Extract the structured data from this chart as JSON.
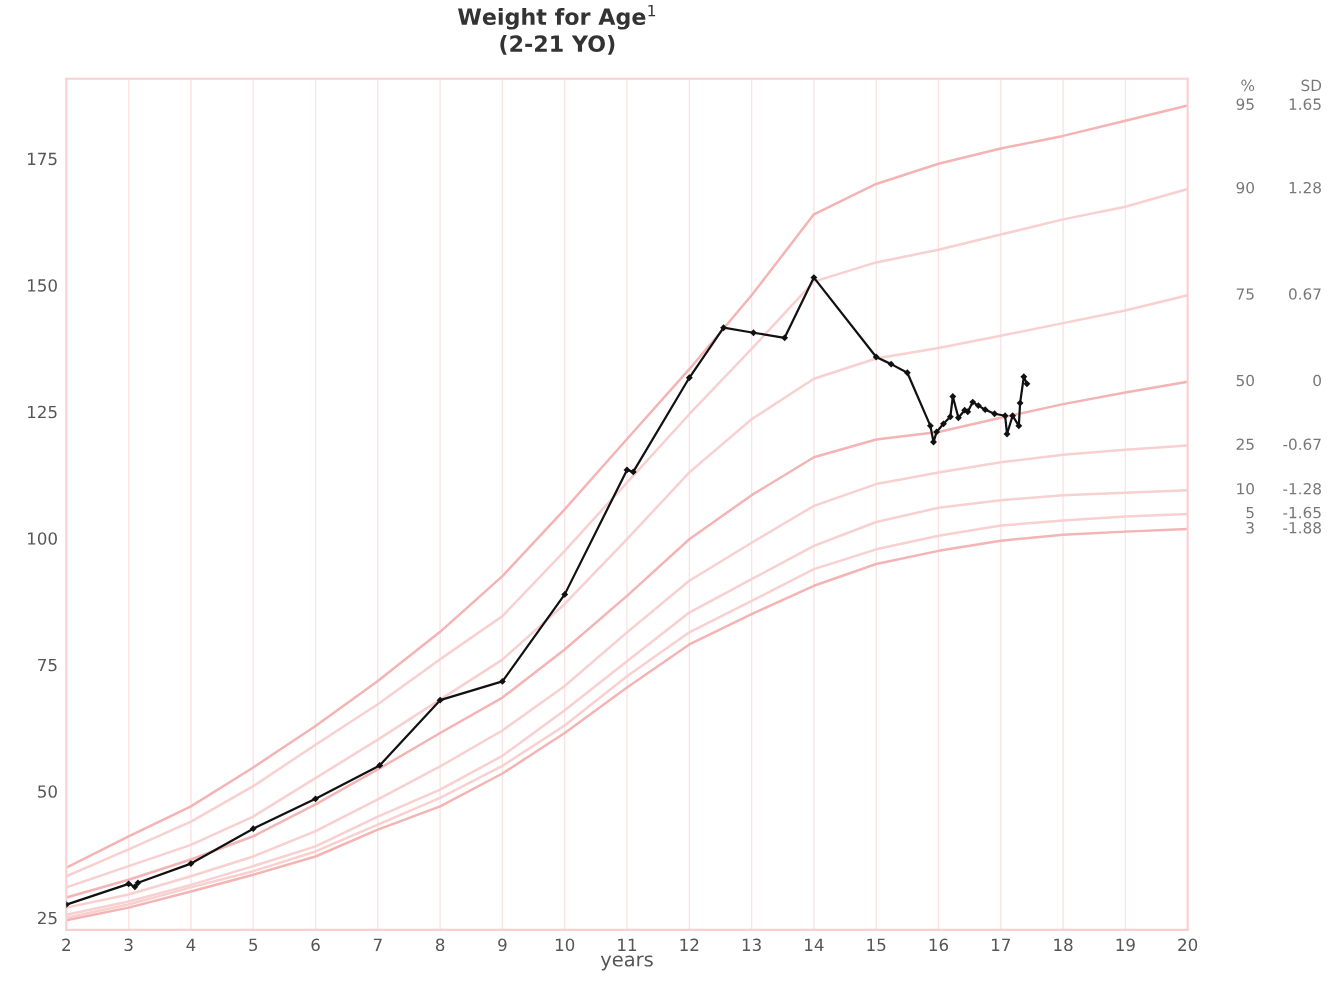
{
  "chart_data": {
    "type": "line",
    "title": "Weight for Age$^{1}$\n(2-21 YO)",
    "xlabel": "years",
    "xlim": [
      2,
      20
    ],
    "xticks": [
      2,
      3,
      4,
      5,
      6,
      7,
      8,
      9,
      10,
      11,
      12,
      13,
      14,
      15,
      16,
      17,
      18,
      19,
      20
    ],
    "ylim": [
      22.6,
      190.8
    ],
    "yticks": [
      25,
      50,
      75,
      100,
      125,
      150,
      175
    ],
    "grid": "x",
    "legend": false,
    "marker": "diamond",
    "line_style": "solid",
    "annotations": [
      "%",
      "SD",
      "1.65",
      "1.28",
      "0.67",
      "0",
      "-0.67",
      "-1.28",
      "-1.65",
      "-1.88"
    ],
    "x": [
      2,
      3,
      4,
      5,
      6,
      7,
      8,
      9,
      10,
      11,
      12,
      13,
      14,
      15,
      16,
      17,
      18,
      19,
      20
    ],
    "series": [
      {
        "name": "95",
        "color": "#f4b4b4",
        "marker": "none",
        "values": [
          34.9,
          41.1,
          47,
          54.7,
          62.9,
          71.8,
          81.5,
          92.5,
          105.7,
          119.6,
          133.4,
          148,
          164,
          170,
          174,
          177,
          179.5,
          182.5,
          185.5
        ]
      },
      {
        "name": "90",
        "color": "#f8d0d0",
        "marker": "none",
        "values": [
          33.2,
          38.5,
          44,
          51,
          59.2,
          67.2,
          76.1,
          84.6,
          97.5,
          111,
          124.5,
          137.4,
          150.7,
          154.5,
          157,
          160,
          163,
          165.5,
          169
        ]
      },
      {
        "name": "75",
        "color": "#f8d0d0",
        "marker": "none",
        "values": [
          31,
          35.2,
          39.4,
          45,
          52.6,
          60.2,
          68.1,
          76,
          87,
          99.8,
          113,
          123.5,
          131.5,
          135.5,
          137.6,
          140,
          142.5,
          145,
          148
        ]
      },
      {
        "name": "50",
        "color": "#f4b4b4",
        "marker": "none",
        "values": [
          29,
          32.5,
          36.5,
          41.1,
          47.4,
          54.3,
          61.5,
          68.5,
          78,
          88.6,
          99.8,
          108.5,
          116,
          119.5,
          121,
          123.8,
          126.5,
          128.8,
          130.9
        ]
      },
      {
        "name": "25",
        "color": "#f8d0d0",
        "marker": "none",
        "values": [
          27,
          29.6,
          33.2,
          37.1,
          42.1,
          48.4,
          54.9,
          62,
          70.8,
          81.4,
          91.6,
          99.1,
          106.4,
          110.7,
          113,
          115,
          116.5,
          117.5,
          118.3
        ]
      },
      {
        "name": "10",
        "color": "#f8d0d0",
        "marker": "none",
        "values": [
          25.6,
          28.2,
          31.5,
          35.2,
          39.1,
          45,
          50.3,
          57,
          66,
          75.7,
          85.3,
          91.9,
          98.5,
          103.2,
          106,
          107.5,
          108.5,
          109,
          109.5
        ]
      },
      {
        "name": "5",
        "color": "#f8d0d0",
        "marker": "none",
        "values": [
          25,
          27.6,
          31,
          34.2,
          38.1,
          43.4,
          48.7,
          55,
          63,
          72.7,
          81.4,
          87.6,
          93.9,
          97.8,
          100.5,
          102.5,
          103.5,
          104.3,
          104.8
        ]
      },
      {
        "name": "3",
        "color": "#f4b4b4",
        "marker": "none",
        "values": [
          24.5,
          27,
          30.2,
          33.5,
          37.1,
          42.4,
          47,
          53.5,
          61.5,
          70.5,
          79,
          85,
          90.6,
          94.9,
          97.5,
          99.5,
          100.7,
          101.3,
          101.8
        ]
      },
      {
        "color": "#111111",
        "x": [
          2,
          3.0,
          3.1,
          3.15,
          4.0,
          5.0,
          6.0,
          7.03,
          8.0,
          9.0,
          10.0,
          11.0,
          11.1,
          12.0,
          12.55,
          13.03,
          13.53,
          14.0,
          15.0,
          15.24,
          15.5,
          15.87,
          15.92,
          15.97,
          16.08,
          16.19,
          16.23,
          16.32,
          16.42,
          16.47,
          16.55,
          16.64,
          16.75,
          16.9,
          17.07,
          17.1,
          17.19,
          17.29,
          17.31,
          17.37,
          17.42
        ],
        "values": [
          27.6,
          31.7,
          31.1,
          31.9,
          35.7,
          42.6,
          48.5,
          55.1,
          68.0,
          71.7,
          88.9,
          113.5,
          113.1,
          131.7,
          141.6,
          140.6,
          139.6,
          151.5,
          135.8,
          134.4,
          132.7,
          122.2,
          119.0,
          121.0,
          122.6,
          124.0,
          128.0,
          123.8,
          125.3,
          125.0,
          126.9,
          126.2,
          125.4,
          124.6,
          124.2,
          120.6,
          124.2,
          122.2,
          126.7,
          131.9,
          130.5
        ]
      }
    ]
  }
}
